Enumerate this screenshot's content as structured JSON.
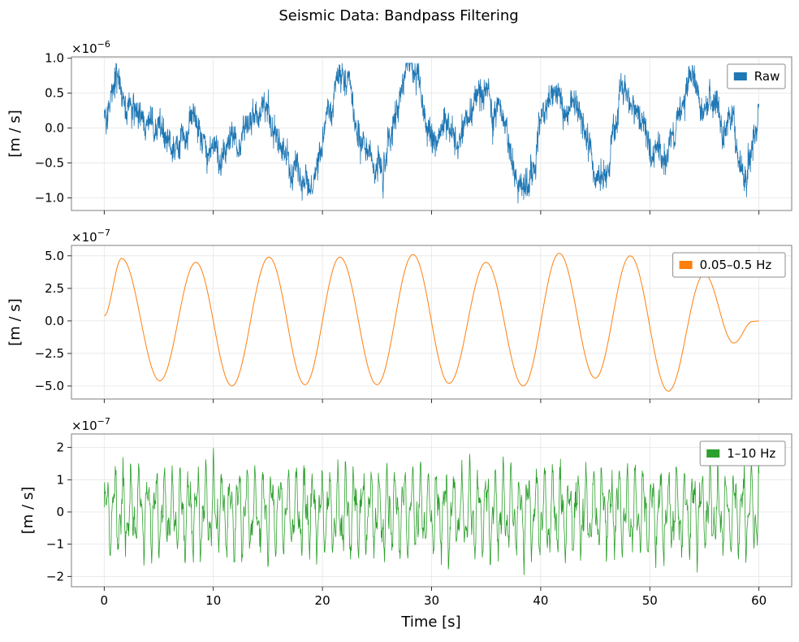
{
  "title": "Seismic Data: Bandpass Filtering",
  "xlabel": "Time [s]",
  "chart_data": [
    {
      "type": "line",
      "series": [
        {
          "name": "Raw",
          "color": "#1f77b4"
        }
      ],
      "ylabel": "[m / s]",
      "offset_text": "×10",
      "offset_exp": "−6",
      "scale": 1e-06,
      "xlim": [
        -3,
        63
      ],
      "ylim": [
        -1.18,
        1.02
      ],
      "xticks": [
        0,
        10,
        20,
        30,
        40,
        50,
        60
      ],
      "xtick_labels": [
        "0",
        "10",
        "20",
        "30",
        "40",
        "50",
        "60"
      ],
      "yticks": [
        -1.0,
        -0.5,
        0.0,
        0.5,
        1.0
      ],
      "ytick_labels": [
        "−1.0",
        "−0.5",
        "0.0",
        "0.5",
        "1.0"
      ],
      "show_x_tick_labels": false,
      "grid": true,
      "legend": "top-right",
      "signal": {
        "kind": "raw",
        "x_start": 0,
        "x_end": 60,
        "period": 6.65,
        "amplitude": 0.5,
        "noise": 0.25,
        "seed": 7
      }
    },
    {
      "type": "line",
      "series": [
        {
          "name": "0.05–0.5 Hz",
          "color": "#ff7f0e"
        }
      ],
      "ylabel": "[m / s]",
      "offset_text": "×10",
      "offset_exp": "−7",
      "scale": 1e-07,
      "xlim": [
        -3,
        63
      ],
      "ylim": [
        -6.0,
        5.8
      ],
      "xticks": [
        0,
        10,
        20,
        30,
        40,
        50,
        60
      ],
      "xtick_labels": [
        "0",
        "10",
        "20",
        "30",
        "40",
        "50",
        "60"
      ],
      "yticks": [
        -5.0,
        -2.5,
        0.0,
        2.5,
        5.0
      ],
      "ytick_labels": [
        "−5.0",
        "−2.5",
        "0.0",
        "2.5",
        "5.0"
      ],
      "show_x_tick_labels": false,
      "grid": true,
      "legend": "top-right",
      "signal": {
        "kind": "extrema",
        "points": [
          [
            0,
            0.4
          ],
          [
            1.6,
            4.8
          ],
          [
            5.1,
            -4.6
          ],
          [
            8.4,
            4.5
          ],
          [
            11.7,
            -5.0
          ],
          [
            15.1,
            4.9
          ],
          [
            18.4,
            -4.9
          ],
          [
            21.6,
            4.9
          ],
          [
            25.0,
            -4.9
          ],
          [
            28.3,
            5.1
          ],
          [
            31.6,
            -4.8
          ],
          [
            35.0,
            4.5
          ],
          [
            38.4,
            -5.0
          ],
          [
            41.7,
            5.2
          ],
          [
            45.0,
            -4.4
          ],
          [
            48.2,
            5.0
          ],
          [
            51.7,
            -5.4
          ],
          [
            55.0,
            3.6
          ],
          [
            57.7,
            -1.7
          ],
          [
            59.4,
            -0.05
          ],
          [
            60,
            0.0
          ]
        ]
      }
    },
    {
      "type": "line",
      "series": [
        {
          "name": "1–10 Hz",
          "color": "#2ca02c"
        }
      ],
      "ylabel": "[m / s]",
      "offset_text": "×10",
      "offset_exp": "−7",
      "scale": 1e-07,
      "xlim": [
        -3,
        63
      ],
      "ylim": [
        -2.32,
        2.42
      ],
      "xticks": [
        0,
        10,
        20,
        30,
        40,
        50,
        60
      ],
      "xtick_labels": [
        "0",
        "10",
        "20",
        "30",
        "40",
        "50",
        "60"
      ],
      "yticks": [
        -2,
        -1,
        0,
        1,
        2
      ],
      "ytick_labels": [
        "−2",
        "−1",
        "0",
        "1",
        "2"
      ],
      "show_x_tick_labels": true,
      "grid": true,
      "legend": "top-right",
      "signal": {
        "kind": "hf",
        "x_start": 0,
        "x_end": 60,
        "amplitude": 1.25,
        "seed": 13
      }
    }
  ]
}
